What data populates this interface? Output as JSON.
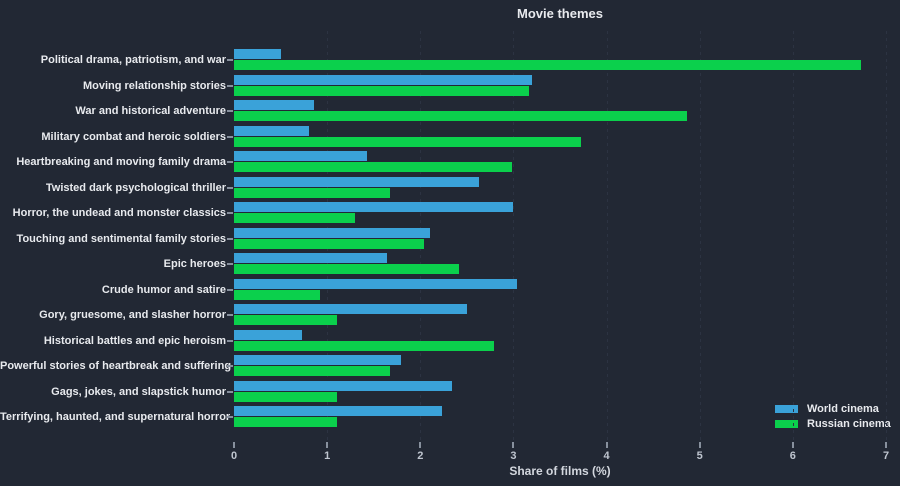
{
  "chart_data": {
    "type": "bar",
    "orientation": "horizontal",
    "title": "Movie themes",
    "xlabel": "Share of films (%)",
    "xlim": [
      0,
      7
    ],
    "xticks": [
      0,
      1,
      2,
      3,
      4,
      5,
      6,
      7
    ],
    "grid": "vertical-dashed",
    "legend_position": "bottom-right",
    "categories": [
      "Political drama, patriotism, and war",
      "Moving relationship stories",
      "War and historical adventure",
      "Military combat and heroic soldiers",
      "Heartbreaking and moving family drama",
      "Twisted dark psychological thriller",
      "Horror, the undead and monster classics",
      "Touching and sentimental family stories",
      "Epic heroes",
      "Crude humor and satire",
      "Gory, gruesome, and slasher horror",
      "Historical battles and epic heroism",
      "Powerful stories of heartbreak and suffering",
      "Gags, jokes, and slapstick humor",
      "Terrifying, haunted, and supernatural horror"
    ],
    "series": [
      {
        "name": "World cinema",
        "color": "#3aa2d9",
        "values": [
          0.5,
          3.2,
          0.86,
          0.81,
          1.43,
          2.63,
          3.0,
          2.1,
          1.64,
          3.04,
          2.5,
          0.73,
          1.79,
          2.34,
          2.23
        ]
      },
      {
        "name": "Russian cinema",
        "color": "#0bd04c",
        "values": [
          6.73,
          3.17,
          4.86,
          3.73,
          2.98,
          1.67,
          1.3,
          2.04,
          2.42,
          0.92,
          1.11,
          2.79,
          1.67,
          1.11,
          1.11
        ]
      }
    ],
    "colors": {
      "background": "#222834",
      "text": "#e8eaee",
      "grid": "#2c3342",
      "tick_text": "#bfc5cf"
    }
  }
}
